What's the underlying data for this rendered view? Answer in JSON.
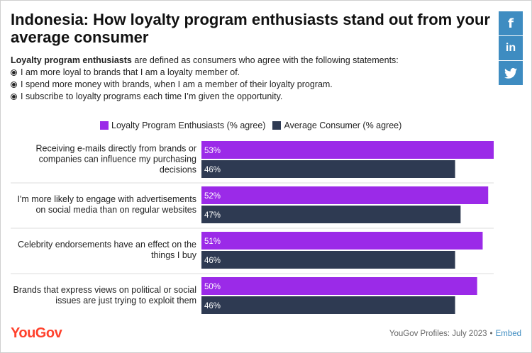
{
  "title": "Indonesia: How loyalty program enthusiasts stand out from your average consumer",
  "intro": {
    "bold": "Loyalty program enthusiasts",
    "rest": " are defined as consumers who agree with the following statements:",
    "bullets": [
      "I am more loyal to brands that I am a loyalty member of.",
      "I spend more money with brands, when I am a member of their loyalty program.",
      "I subscribe to loyalty programs each time I’m given the opportunity."
    ]
  },
  "social": [
    "f",
    "in",
    "twitter-icon"
  ],
  "colors": {
    "enthusiasts": "#9b2ae8",
    "average": "#2e3a52",
    "brand": "#ff412c",
    "social": "#3e8cc1"
  },
  "chart_data": {
    "type": "bar",
    "orientation": "horizontal",
    "categories": [
      "Receiving e-mails directly from brands or companies can influence my purchasing decisions",
      "I'm more likely to engage with advertisements on social media than on regular websites",
      "Celebrity endorsements have an effect on the things I buy",
      "Brands that express views on political or social issues are just trying to exploit them"
    ],
    "category_lines": [
      [
        "Receiving e-mails directly from brands or",
        "companies can influence my purchasing",
        "decisions"
      ],
      [
        "I'm more likely to engage with advertisements",
        "on social media than on regular websites"
      ],
      [
        "Celebrity endorsements have an effect on the",
        "things I buy"
      ],
      [
        "Brands that express views on political or social",
        "issues are just trying to exploit them"
      ]
    ],
    "series": [
      {
        "name": "Loyalty Program Enthusiasts (% agree)",
        "values": [
          53,
          52,
          51,
          50
        ]
      },
      {
        "name": "Average Consumer (% agree)",
        "values": [
          46,
          47,
          46,
          46
        ]
      }
    ],
    "value_suffix": "%",
    "xlim": [
      0,
      53
    ]
  },
  "footer": {
    "logo": "YouGov",
    "source": "YouGov Profiles: July 2023",
    "separator": "•",
    "embed": "Embed"
  }
}
